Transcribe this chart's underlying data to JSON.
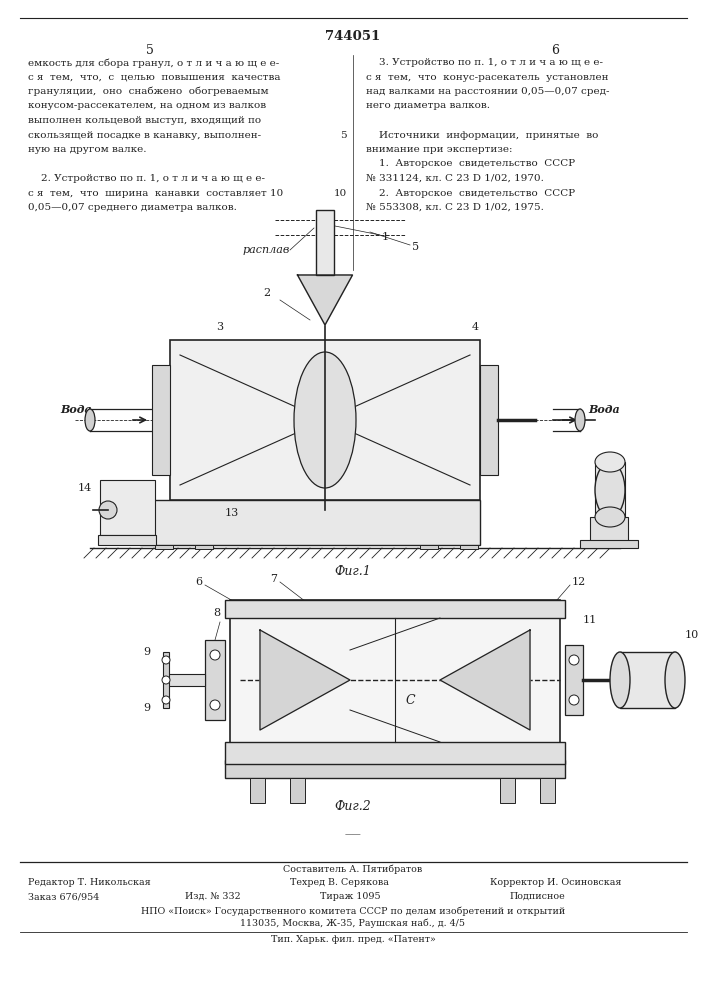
{
  "title_number": "744051",
  "page_left": "5",
  "page_right": "6",
  "bg_color": "#ffffff",
  "text_color": "#222222",
  "left_column_text": [
    "емкость для сбора гранул, о т л и ч а ю щ е е-",
    "с я  тем,  что,  с  целью  повышения  качества",
    "грануляции,  оно  снабжено  обогреваемым",
    "конусом-рассекателем, на одном из валков",
    "выполнен кольцевой выступ, входящий по",
    "скользящей посадке в канавку, выполнен-",
    "ную на другом валке.",
    "",
    "    2. Устройство по п. 1, о т л и ч а ю щ е е-",
    "с я  тем,  что  ширина  канавки  составляет 10",
    "0,05—0,07 среднего диаметра валков."
  ],
  "right_column_text": [
    "    3. Устройство по п. 1, о т л и ч а ю щ е е-",
    "с я  тем,  что  конус-расекатель  установлен",
    "над валками на расстоянии 0,05—0,07 сред-",
    "него диаметра валков.",
    "",
    "    Источники  информации,  принятые  во",
    "внимание при экспертизе:",
    "    1.  Авторское  свидетельство  СССР",
    "№ 331124, кл. С 23 D 1/02, 1970.",
    "    2.  Авторское  свидетельство  СССР",
    "№ 553308, кл. С 23 D 1/02, 1975."
  ],
  "fig1_label": "Фиг.1",
  "fig2_label": "Фиг.2",
  "bottom_texts": {
    "composer": "Составитель А. Пятибратов",
    "editor": "Редактор Т. Никольская",
    "techred": "Техред В. Серякова",
    "corrector": "Корректор И. Осиновская",
    "order": "Заказ 676/954",
    "izd": "Изд. № 332",
    "tirazh": "Тираж 1095",
    "podpisnoe": "Подписное",
    "npo": "НПО «Поиск» Государственного комитета СССР по делам изобретений и открытий",
    "address": "113035, Москва, Ж-35, Раушская наб., д. 4/5",
    "tip": "Тип. Харьк. фил. пред. «Патент»"
  }
}
